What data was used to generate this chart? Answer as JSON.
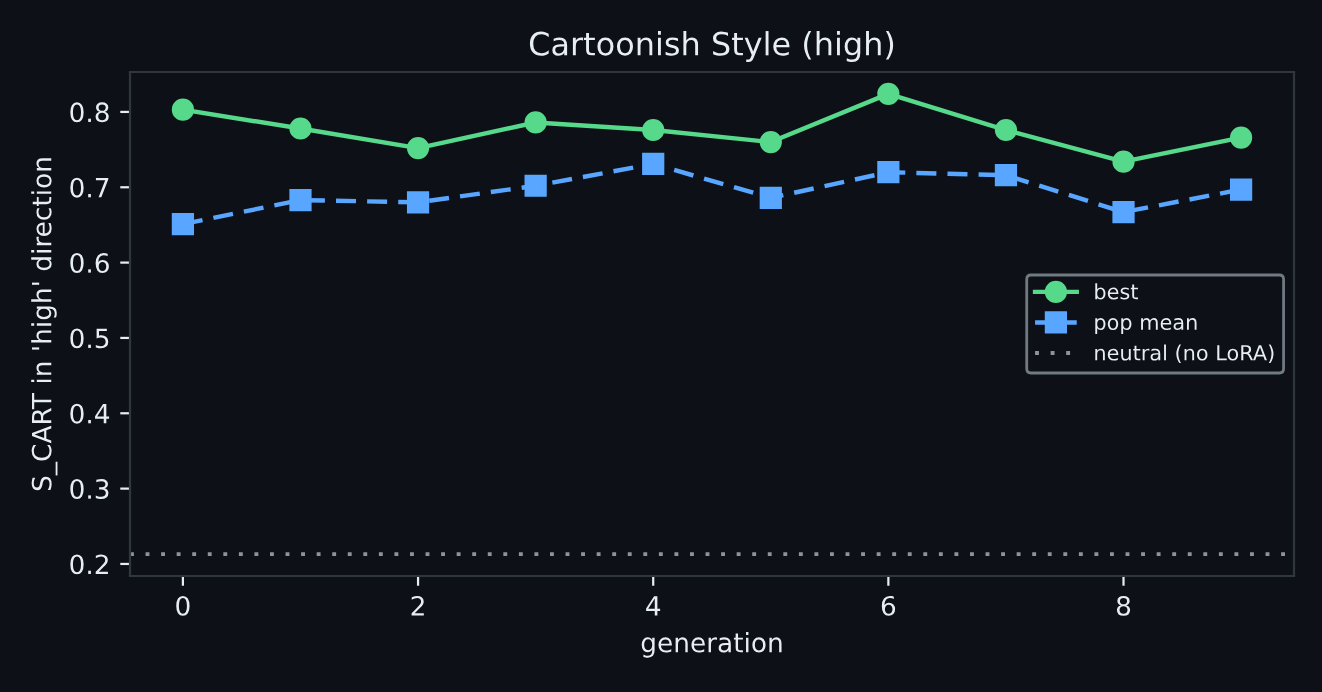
{
  "chart_data": {
    "type": "line",
    "title": "Cartoonish Style (high)",
    "xlabel": "generation",
    "ylabel": "S_CART in 'high' direction",
    "x": [
      0,
      1,
      2,
      3,
      4,
      5,
      6,
      7,
      8,
      9
    ],
    "series": [
      {
        "name": "best",
        "color": "#56d98a",
        "marker": "circle",
        "line_style": "solid",
        "values": [
          0.803,
          0.778,
          0.752,
          0.786,
          0.776,
          0.76,
          0.824,
          0.776,
          0.734,
          0.766
        ]
      },
      {
        "name": "pop mean",
        "color": "#58a6ff",
        "marker": "square",
        "line_style": "dashed",
        "values": [
          0.651,
          0.683,
          0.68,
          0.702,
          0.731,
          0.686,
          0.72,
          0.716,
          0.667,
          0.697
        ]
      }
    ],
    "ref_lines": [
      {
        "axis": "y",
        "value": 0.213,
        "label": "neutral (no LoRA)",
        "color": "#8b949e",
        "line_style": "dotted"
      }
    ],
    "xlim": [
      -0.45,
      9.45
    ],
    "xticks": [
      0,
      2,
      4,
      6,
      8
    ],
    "ylim": [
      0.184,
      0.853
    ],
    "yticks": [
      0.2,
      0.3,
      0.4,
      0.5,
      0.6,
      0.7,
      0.8
    ],
    "grid": false,
    "legend": "right"
  }
}
